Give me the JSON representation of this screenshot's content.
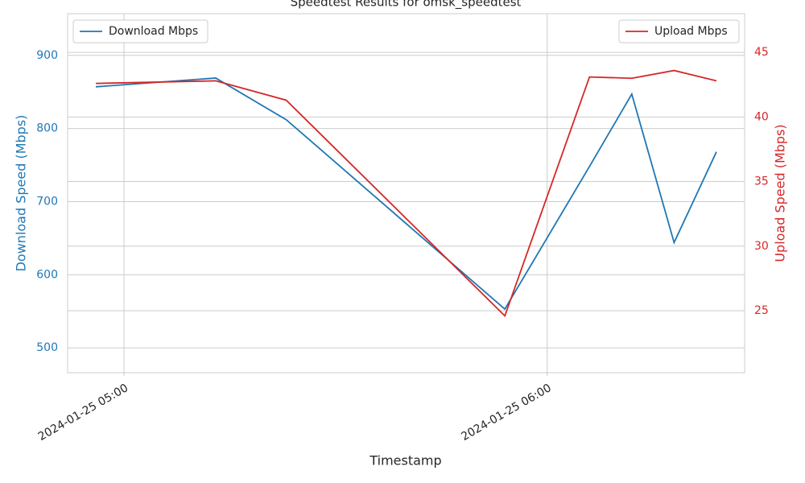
{
  "chart_data": {
    "type": "line",
    "title": "Speedtest Results for omsk_speedtest",
    "xlabel": "Timestamp",
    "ylabel": "Download Speed (Mbps)",
    "y2label": "Upload Speed (Mbps)",
    "x": [
      "2024-01-25 04:56",
      "2024-01-25 05:13",
      "2024-01-25 05:23",
      "2024-01-25 05:54",
      "2024-01-25 06:06",
      "2024-01-25 06:12",
      "2024-01-25 06:18",
      "2024-01-25 06:24"
    ],
    "xlim": [
      "2024-01-25 04:52",
      "2024-01-25 06:28"
    ],
    "xticks": [
      "2024-01-25 05:00",
      "2024-01-25 06:00"
    ],
    "ylim": [
      466,
      957
    ],
    "yticks": [
      500,
      600,
      700,
      800,
      900
    ],
    "y2lim": [
      20.2,
      48
    ],
    "y2ticks": [
      25,
      30,
      35,
      40,
      45
    ],
    "grid": true,
    "series": [
      {
        "name": "Download Mbps",
        "color": "#1f77b4",
        "legend": "upper left",
        "values": [
          857,
          869,
          812,
          553,
          748,
          847,
          644,
          768
        ]
      },
      {
        "name": "Upload Mbps",
        "color": "#d62728",
        "axis": "y2",
        "legend": "upper right",
        "values": [
          42.6,
          42.8,
          41.3,
          24.6,
          43.1,
          43.0,
          43.6,
          42.8
        ]
      }
    ]
  }
}
